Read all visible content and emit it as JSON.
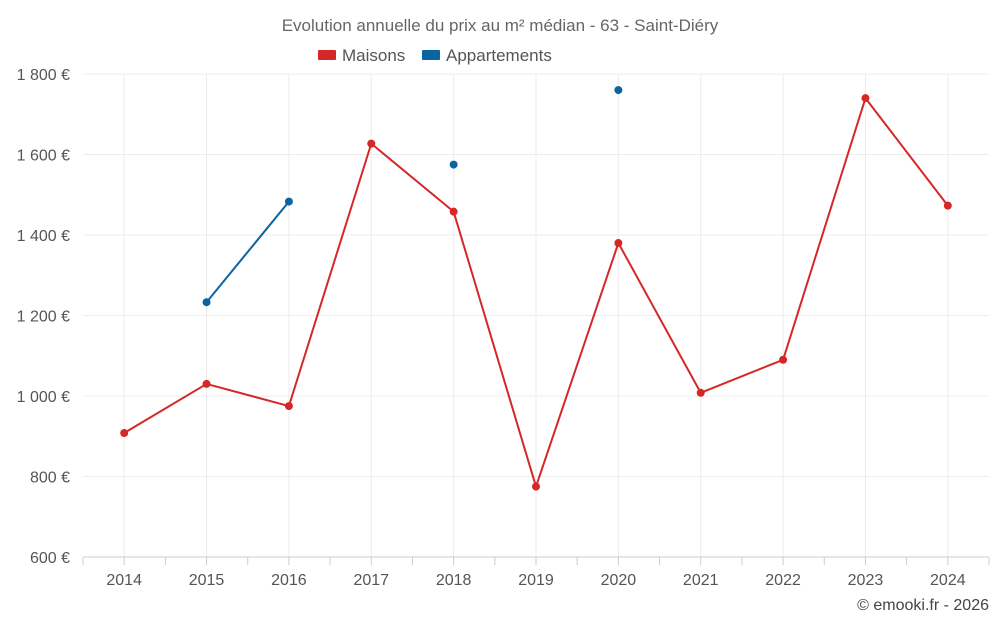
{
  "chart_data": {
    "type": "line",
    "title": "Evolution annuelle du prix au m² médian - 63 - Saint-Diéry",
    "xlabel": "",
    "ylabel": "",
    "categories": [
      "2014",
      "2015",
      "2016",
      "2017",
      "2018",
      "2019",
      "2020",
      "2021",
      "2022",
      "2023",
      "2024"
    ],
    "ylim": [
      600,
      1800
    ],
    "yticks": [
      600,
      800,
      1000,
      1200,
      1400,
      1600,
      1800
    ],
    "ytick_labels": [
      "600 €",
      "800 €",
      "1 000 €",
      "1 200 €",
      "1 400 €",
      "1 600 €",
      "1 800 €"
    ],
    "grid": true,
    "legend_position": "top-center",
    "series": [
      {
        "name": "Maisons",
        "color": "#d62728",
        "values": [
          908,
          1030,
          975,
          1627,
          1458,
          775,
          1380,
          1008,
          1090,
          1740,
          1473
        ]
      },
      {
        "name": "Appartements",
        "color": "#0a64a0",
        "values": [
          null,
          1233,
          1483,
          null,
          1575,
          null,
          1760,
          null,
          null,
          null,
          null
        ]
      }
    ],
    "credit": "© emooki.fr - 2026"
  }
}
